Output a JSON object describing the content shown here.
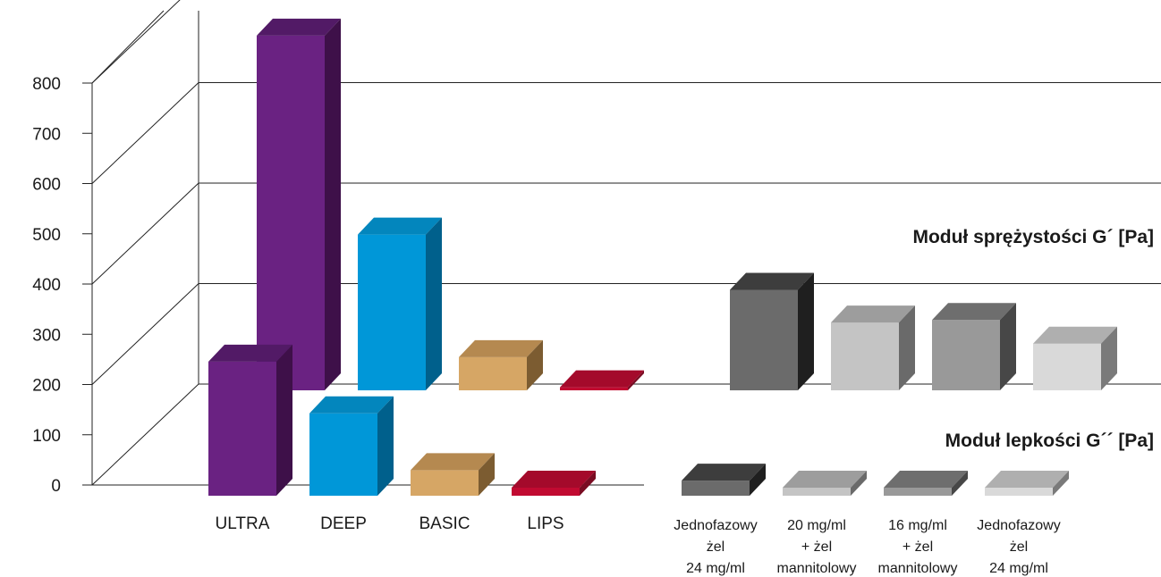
{
  "chart_data": {
    "type": "bar",
    "style": "3d-grouped",
    "y_ticks": [
      "0",
      "100",
      "200",
      "300",
      "400",
      "500",
      "600",
      "700",
      "800"
    ],
    "ylim": [
      0,
      800
    ],
    "grid": true,
    "categories": [
      {
        "lines": [
          "ULTRA"
        ]
      },
      {
        "lines": [
          "DEEP"
        ]
      },
      {
        "lines": [
          "BASIC"
        ]
      },
      {
        "lines": [
          "LIPS"
        ]
      },
      {
        "lines": [
          "Jednofazowy",
          "żel",
          "24 mg/ml"
        ]
      },
      {
        "lines": [
          "20 mg/ml",
          "+ żel",
          "mannitolowy"
        ]
      },
      {
        "lines": [
          "16 mg/ml",
          "+ żel",
          "mannitolowy"
        ]
      },
      {
        "lines": [
          "Jednofazowy",
          "żel",
          "24 mg/ml"
        ]
      }
    ],
    "series": [
      {
        "name": "Moduł sprężystości G´ [Pa]",
        "values": [
          706,
          310,
          66,
          6,
          200,
          135,
          140,
          93
        ]
      },
      {
        "name": "Moduł lepkości G´´ [Pa]",
        "values": [
          267,
          164,
          51,
          16,
          30,
          16,
          16,
          16
        ]
      }
    ],
    "colors": [
      {
        "front": "#6a2282",
        "top": "#521a66",
        "side": "#3e1049"
      },
      {
        "front": "#0097d8",
        "top": "#0386bd",
        "side": "#00608c"
      },
      {
        "front": "#d6a665",
        "top": "#b58950",
        "side": "#7c5c31"
      },
      {
        "front": "#c10a31",
        "top": "#a40a2b",
        "side": "#7a0b22"
      },
      {
        "front": "#6b6b6b",
        "top": "#3d3d3d",
        "side": "#1f1f1f"
      },
      {
        "front": "#c4c4c4",
        "top": "#9d9d9d",
        "side": "#6a6a6a"
      },
      {
        "front": "#999999",
        "top": "#6e6e6e",
        "side": "#474747"
      },
      {
        "front": "#d9d9d9",
        "top": "#afafaf",
        "side": "#7a7a7a"
      }
    ]
  }
}
